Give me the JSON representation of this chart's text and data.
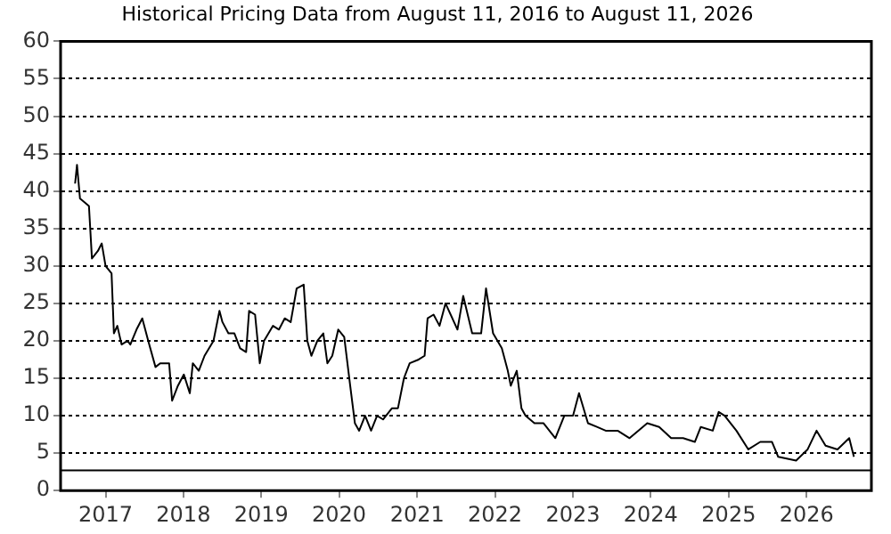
{
  "chart_data": {
    "type": "line",
    "title": "Historical Pricing Data from August 11, 2016 to August 11, 2026",
    "x": [
      "2016-08-11",
      "2016-08-20",
      "2016-09-03",
      "2016-10-15",
      "2016-10-29",
      "2016-11-26",
      "2016-12-14",
      "2017-01-01",
      "2017-01-29",
      "2017-02-09",
      "2017-02-25",
      "2017-03-17",
      "2017-04-14",
      "2017-04-27",
      "2017-05-26",
      "2017-06-22",
      "2017-07-20",
      "2017-08-23",
      "2017-09-14",
      "2017-10-26",
      "2017-11-09",
      "2017-12-06",
      "2018-01-03",
      "2018-01-31",
      "2018-02-14",
      "2018-03-14",
      "2018-04-10",
      "2018-05-22",
      "2018-06-19",
      "2018-07-03",
      "2018-07-31",
      "2018-08-28",
      "2018-09-24",
      "2018-10-22",
      "2018-11-05",
      "2018-12-03",
      "2018-12-25",
      "2019-01-14",
      "2019-02-25",
      "2019-03-25",
      "2019-04-21",
      "2019-05-19",
      "2019-06-16",
      "2019-07-19",
      "2019-08-05",
      "2019-08-24",
      "2019-09-21",
      "2019-10-19",
      "2019-11-07",
      "2019-11-30",
      "2019-12-28",
      "2020-01-25",
      "2020-02-22",
      "2020-03-15",
      "2020-04-04",
      "2020-05-02",
      "2020-05-30",
      "2020-06-27",
      "2020-07-25",
      "2020-09-05",
      "2020-10-03",
      "2020-10-31",
      "2020-11-27",
      "2021-01-08",
      "2021-02-05",
      "2021-02-19",
      "2021-03-19",
      "2021-04-16",
      "2021-05-14",
      "2021-07-09",
      "2021-08-05",
      "2021-09-16",
      "2021-10-28",
      "2021-11-20",
      "2021-12-23",
      "2022-02-02",
      "2022-03-02",
      "2022-03-16",
      "2022-04-13",
      "2022-05-05",
      "2022-05-24",
      "2022-07-05",
      "2022-08-16",
      "2022-10-11",
      "2022-11-22",
      "2023-01-02",
      "2023-01-30",
      "2023-03-13",
      "2023-04-24",
      "2023-06-04",
      "2023-07-30",
      "2023-09-24",
      "2023-11-04",
      "2023-12-16",
      "2024-02-10",
      "2024-04-06",
      "2024-06-01",
      "2024-07-26",
      "2024-08-23",
      "2024-10-18",
      "2024-11-15",
      "2024-12-13",
      "2025-02-06",
      "2025-04-03",
      "2025-05-29",
      "2025-07-23",
      "2025-08-21",
      "2025-11-13",
      "2026-01-06",
      "2026-02-17",
      "2026-03-31",
      "2026-05-26",
      "2026-07-20",
      "2026-08-11"
    ],
    "series": [
      {
        "color": "#000000",
        "values": [
          41,
          43.5,
          39,
          38,
          31,
          32,
          33,
          30,
          29,
          21,
          22,
          19.5,
          20,
          19.5,
          21.5,
          23,
          20,
          16.5,
          17,
          17,
          12,
          14,
          15.5,
          13,
          17,
          16,
          18,
          20,
          24,
          22.5,
          21,
          21,
          19,
          18.5,
          24,
          23.5,
          17,
          20,
          22,
          21.5,
          23,
          22.5,
          27,
          27.5,
          20,
          18,
          20,
          21,
          17,
          18,
          21.5,
          20.5,
          14,
          9,
          8,
          10,
          8,
          10,
          9.5,
          11,
          11,
          15,
          17,
          17.5,
          18,
          23,
          23.5,
          22,
          25,
          21.5,
          26,
          21,
          21,
          27,
          21,
          19,
          16,
          14,
          16,
          11,
          10,
          9,
          9,
          7,
          10,
          10,
          13,
          9,
          8.5,
          8,
          8,
          7,
          8,
          9,
          8.5,
          7,
          7,
          6.5,
          8.5,
          8,
          10.5,
          10,
          8,
          5.5,
          6.5,
          6.5,
          4.5,
          4,
          5.5,
          8,
          6,
          5.5,
          7,
          4.5
        ]
      }
    ],
    "xlim": [
      "2016-06-04",
      "2026-11-01"
    ],
    "xticks": [
      {
        "value": "2017",
        "label": "2017"
      },
      {
        "value": "2018",
        "label": "2018"
      },
      {
        "value": "2019",
        "label": "2019"
      },
      {
        "value": "2020",
        "label": "2020"
      },
      {
        "value": "2021",
        "label": "2021"
      },
      {
        "value": "2022",
        "label": "2022"
      },
      {
        "value": "2023",
        "label": "2023"
      },
      {
        "value": "2024",
        "label": "2024"
      },
      {
        "value": "2025",
        "label": "2025"
      },
      {
        "value": "2026",
        "label": "2026"
      }
    ],
    "ylim": [
      0,
      60
    ],
    "yticks": [
      0,
      5,
      10,
      15,
      20,
      25,
      30,
      35,
      40,
      45,
      50,
      55,
      60
    ],
    "ref_lines": [
      {
        "axis": "y",
        "value": 2.7,
        "color": "#000000",
        "line_style": "solid"
      }
    ],
    "grid": "y",
    "legend": false,
    "marker": "none",
    "line_style": "solid"
  }
}
